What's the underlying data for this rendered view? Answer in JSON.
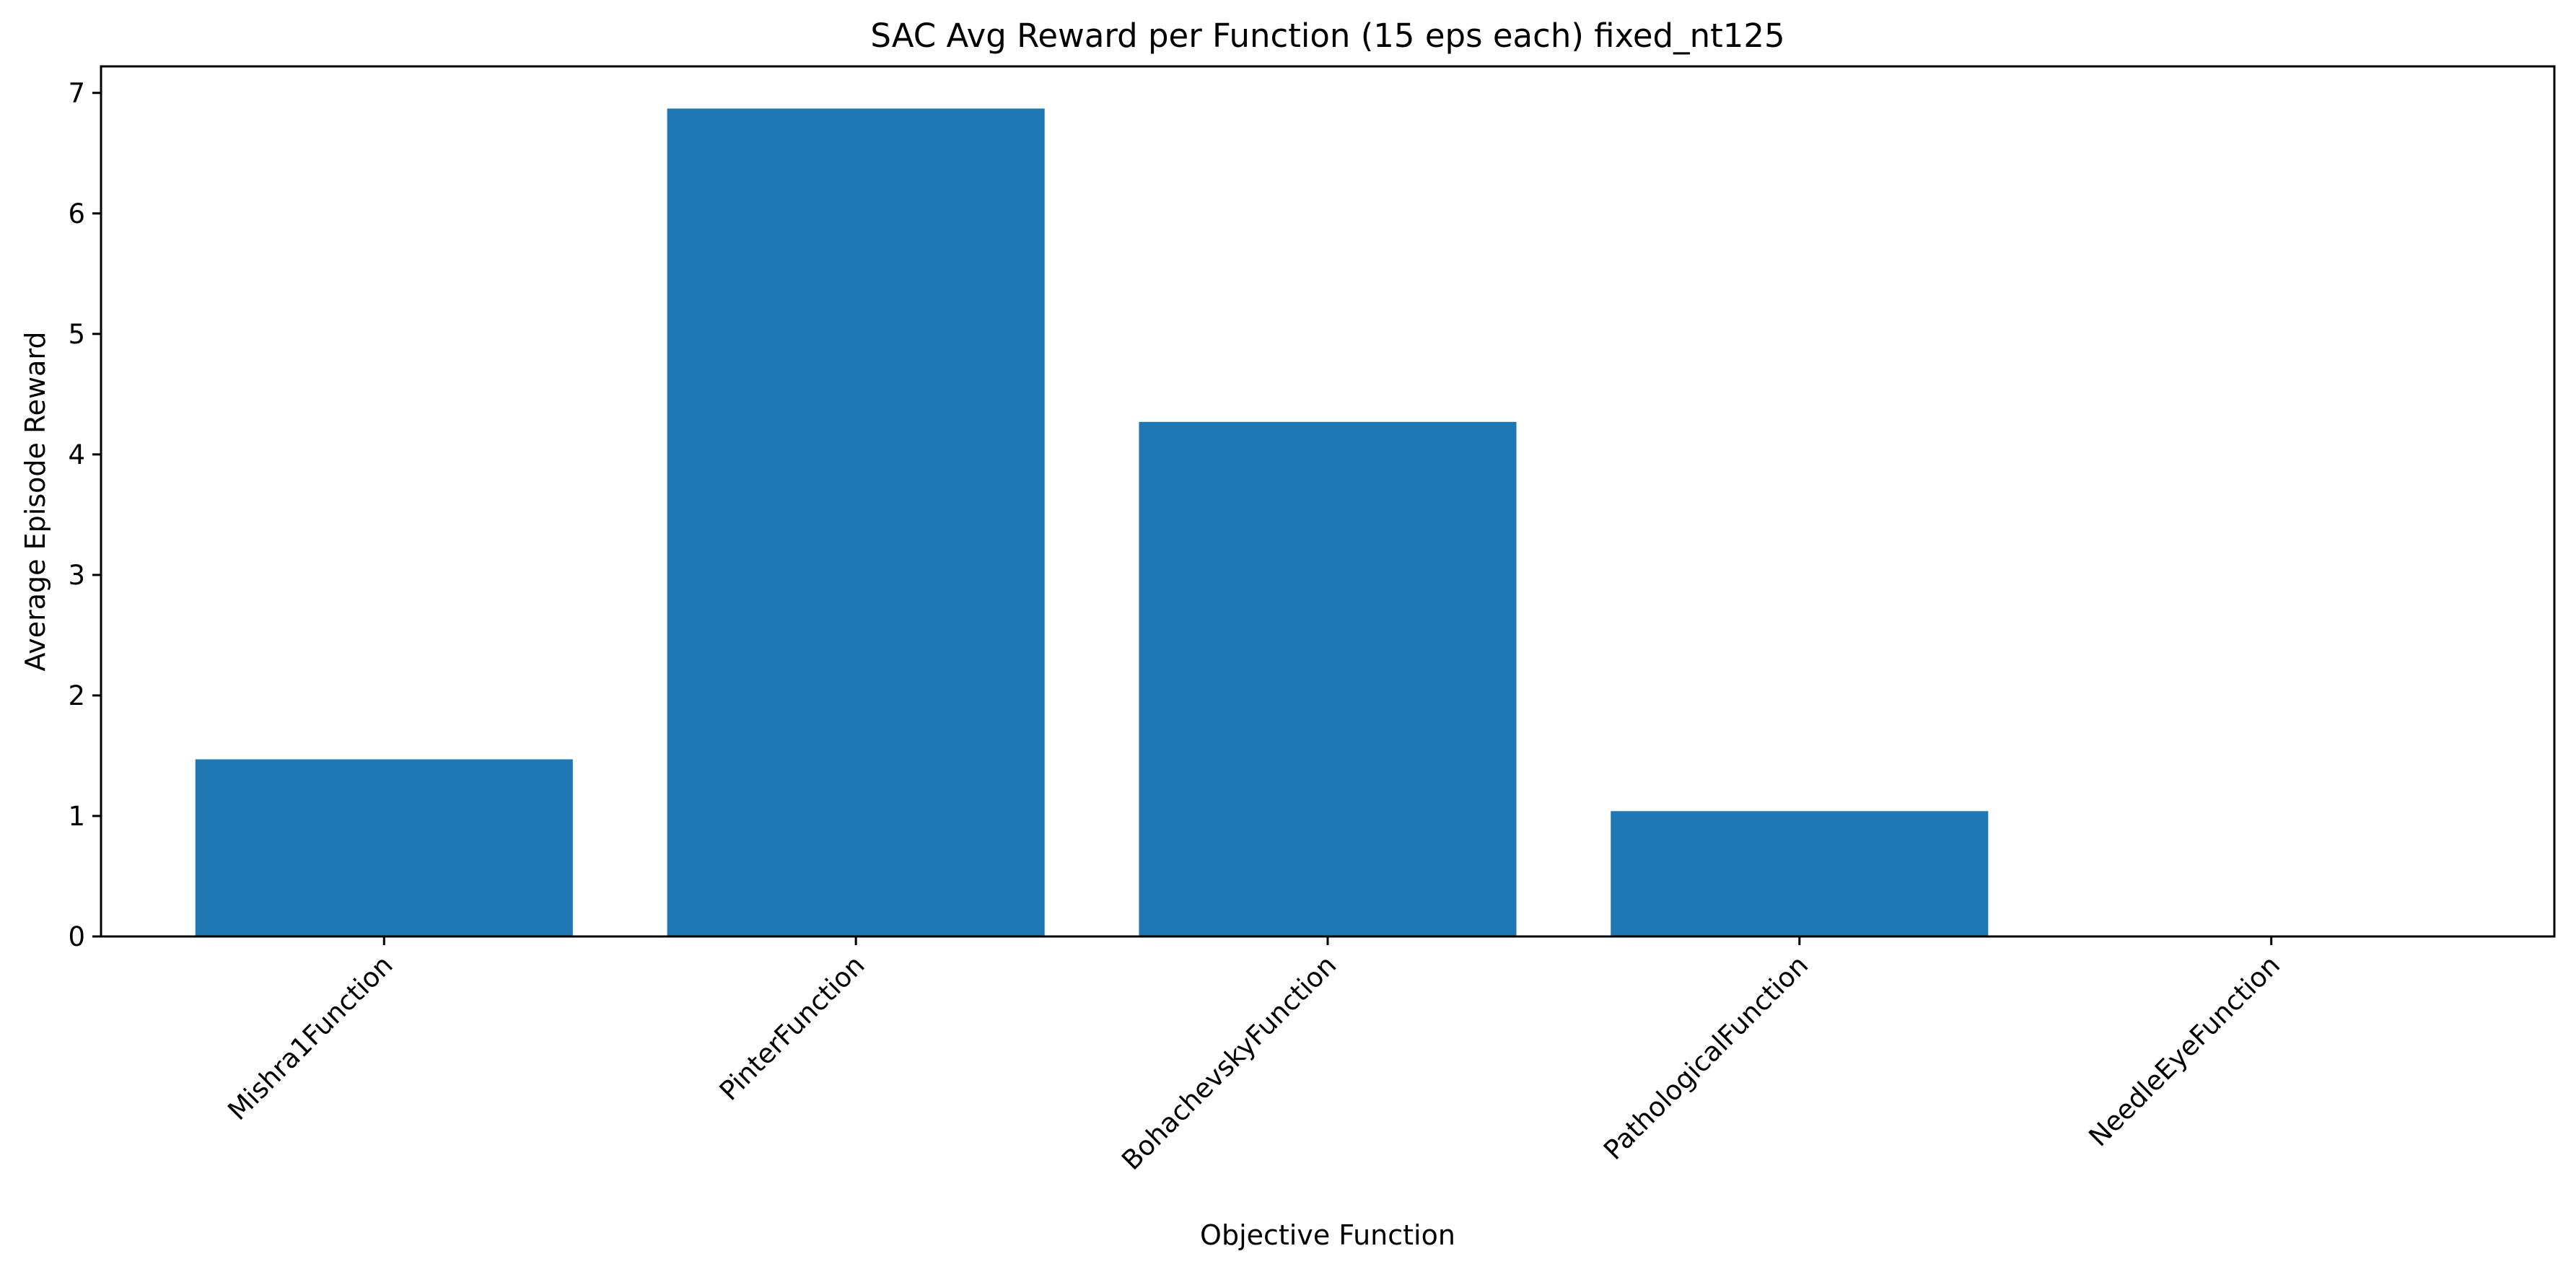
{
  "chart_data": {
    "type": "bar",
    "title": "SAC Avg Reward per Function (15 eps each) fixed_nt125",
    "xlabel": "Objective Function",
    "ylabel": "Average Episode Reward",
    "categories": [
      "Mishra1Function",
      "PinterFunction",
      "BohachevskyFunction",
      "PathologicalFunction",
      "NeedleEyeFunction"
    ],
    "values": [
      1.47,
      6.87,
      4.27,
      1.04,
      0.0
    ],
    "ylim": [
      0,
      7.22
    ],
    "yticks": [
      0,
      1,
      2,
      3,
      4,
      5,
      6,
      7
    ],
    "grid": false,
    "legend": "none",
    "bar_color": "#1f77b4"
  }
}
